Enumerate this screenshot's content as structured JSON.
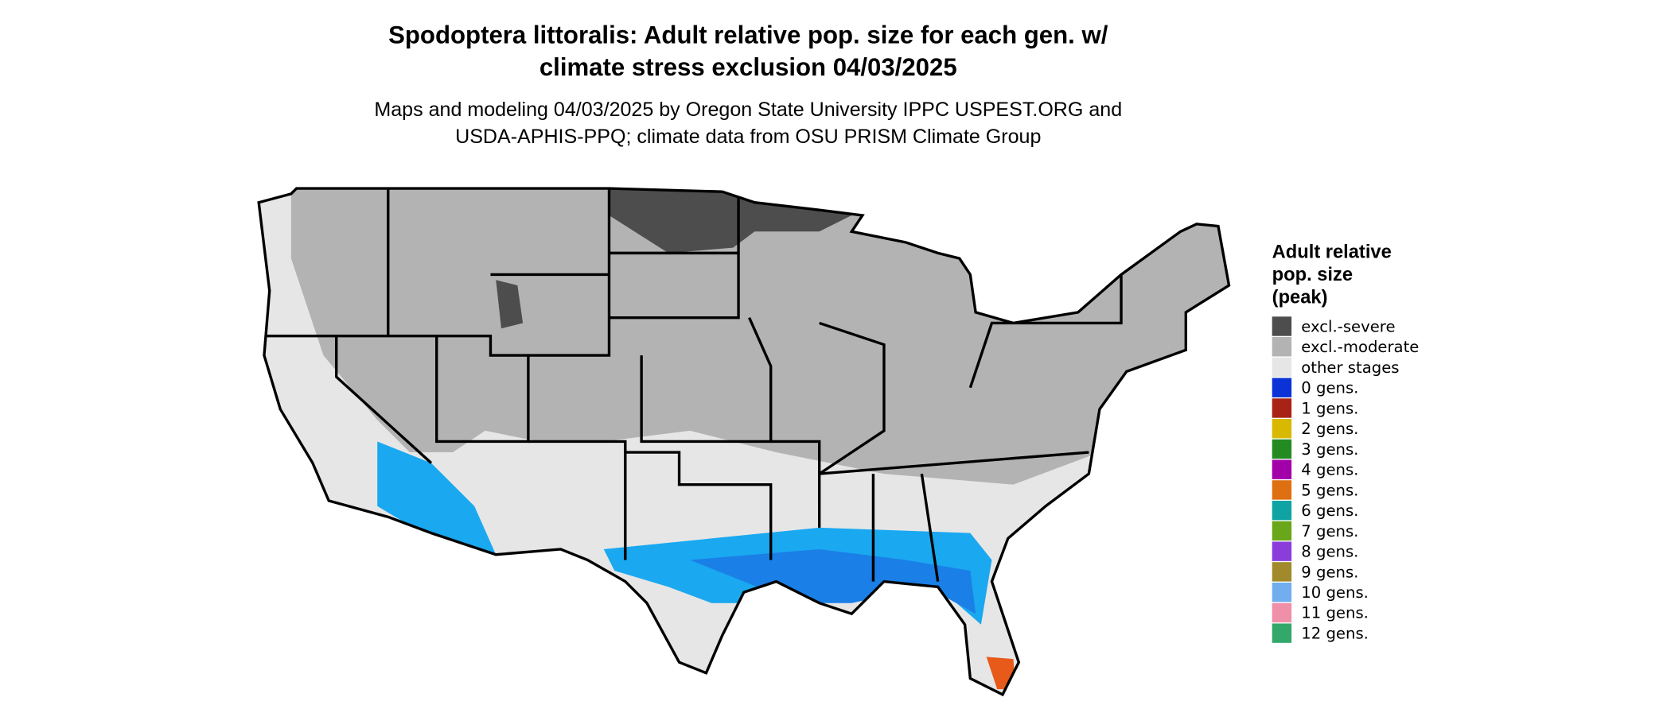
{
  "title": [
    "Spodoptera littoralis: Adult relative pop. size for each gen. w/",
    "climate stress exclusion 04/03/2025"
  ],
  "subtitle": [
    "Maps and modeling 04/03/2025 by Oregon State University IPPC USPEST.ORG and",
    "USDA-APHIS-PPQ; climate data from OSU PRISM Climate Group"
  ],
  "legend": {
    "title": [
      "Adult relative",
      "pop. size",
      "(peak)"
    ],
    "items": [
      {
        "label": "excl.-severe",
        "color": "#4d4d4d"
      },
      {
        "label": "excl.-moderate",
        "color": "#b3b3b3"
      },
      {
        "label": "other stages",
        "color": "#e6e6e6"
      },
      {
        "label": "0 gens.",
        "color": "#0a32d6"
      },
      {
        "label": "1 gens.",
        "color": "#a82315"
      },
      {
        "label": "2 gens.",
        "color": "#d9b800"
      },
      {
        "label": "3 gens.",
        "color": "#238b22"
      },
      {
        "label": "4 gens.",
        "color": "#a200a8"
      },
      {
        "label": "5 gens.",
        "color": "#de7012"
      },
      {
        "label": "6 gens.",
        "color": "#0fa3a3"
      },
      {
        "label": "7 gens.",
        "color": "#6aa61a"
      },
      {
        "label": "8 gens.",
        "color": "#8a3ddb"
      },
      {
        "label": "9 gens.",
        "color": "#a08a2b"
      },
      {
        "label": "10 gens.",
        "color": "#72aeef"
      },
      {
        "label": "11 gens.",
        "color": "#ef8fa8"
      },
      {
        "label": "12 gens.",
        "color": "#32a86b"
      }
    ]
  }
}
